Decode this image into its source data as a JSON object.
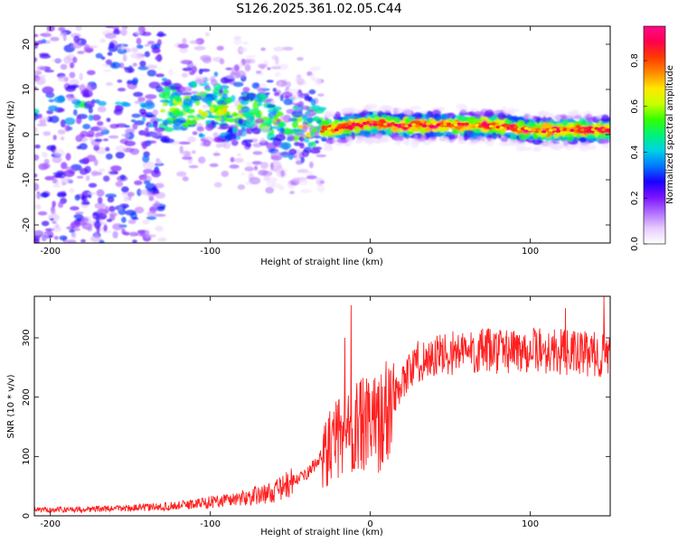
{
  "title": "S126.2025.361.02.05.C44",
  "chart_data": [
    {
      "type": "heatmap",
      "xlabel": "Height of straight line (km)",
      "ylabel": "Frequency (Hz)",
      "xlim": [
        -210,
        150
      ],
      "ylim": [
        -24,
        24
      ],
      "xticks": [
        -200,
        -100,
        0,
        100
      ],
      "yticks": [
        -20,
        -10,
        0,
        10,
        20
      ],
      "colorbar": {
        "label": "Normalized spectral amplitude",
        "range": [
          0.0,
          0.95
        ],
        "ticks": [
          "0.0",
          "0.2",
          "0.4",
          "0.6",
          "0.8"
        ],
        "colors": [
          "#ffffff",
          "#e8ccff",
          "#b070ff",
          "#7d12ff",
          "#1a00ff",
          "#0077ff",
          "#00d2e6",
          "#00f27a",
          "#33ff00",
          "#c8ff00",
          "#ffe800",
          "#ff8a00",
          "#ff3a00",
          "#ff004e",
          "#ff0a8c"
        ]
      },
      "ridge": [
        {
          "x": -150,
          "y": 6
        },
        {
          "x": -120,
          "y": 6
        },
        {
          "x": -100,
          "y": 6
        },
        {
          "x": -80,
          "y": 5
        },
        {
          "x": -60,
          "y": 3
        },
        {
          "x": -40,
          "y": 1
        },
        {
          "x": -30,
          "y": 1
        },
        {
          "x": -10,
          "y": 2
        },
        {
          "x": 0,
          "y": 2.5
        },
        {
          "x": 20,
          "y": 2
        },
        {
          "x": 60,
          "y": 2
        },
        {
          "x": 80,
          "y": 2
        },
        {
          "x": 100,
          "y": 1
        },
        {
          "x": 120,
          "y": 1
        },
        {
          "x": 150,
          "y": 1
        }
      ]
    },
    {
      "type": "line",
      "series": [
        {
          "name": "SNR",
          "color": "#ff2020"
        }
      ],
      "xlabel": "Height of straight line (km)",
      "ylabel": "SNR (10 * v/v)",
      "xlim": [
        -210,
        150
      ],
      "ylim": [
        0,
        370
      ],
      "xticks": [
        -200,
        -100,
        0,
        100
      ],
      "yticks": [
        0,
        100,
        200,
        300
      ],
      "trend": [
        {
          "x": -210,
          "y": 10
        },
        {
          "x": -160,
          "y": 12
        },
        {
          "x": -130,
          "y": 15
        },
        {
          "x": -110,
          "y": 20
        },
        {
          "x": -80,
          "y": 30
        },
        {
          "x": -60,
          "y": 40
        },
        {
          "x": -40,
          "y": 70
        },
        {
          "x": -30,
          "y": 100
        },
        {
          "x": -20,
          "y": 130
        },
        {
          "x": -10,
          "y": 150
        },
        {
          "x": 0,
          "y": 150
        },
        {
          "x": 10,
          "y": 170
        },
        {
          "x": 20,
          "y": 230
        },
        {
          "x": 30,
          "y": 260
        },
        {
          "x": 50,
          "y": 275
        },
        {
          "x": 100,
          "y": 280
        },
        {
          "x": 150,
          "y": 270
        }
      ],
      "peaks": [
        {
          "x": -12,
          "y": 355
        },
        {
          "x": -16,
          "y": 300
        },
        {
          "x": 146,
          "y": 370
        },
        {
          "x": 122,
          "y": 350
        }
      ]
    }
  ]
}
